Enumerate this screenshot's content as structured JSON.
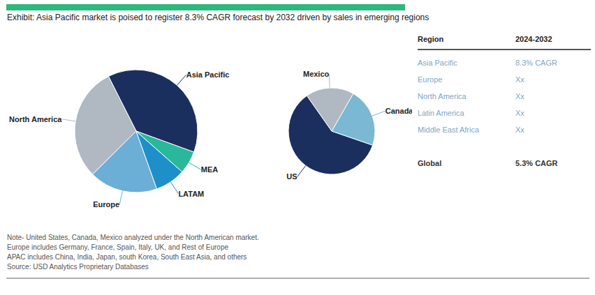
{
  "chart_data": [
    {
      "type": "pie",
      "title": "Exhibit: Asia Pacific market is poised to register 8.3% CAGR forecast by 2032 driven by sales in emerging regions",
      "categories": [
        "Asia Pacific",
        "North America",
        "Europe",
        "LATAM",
        "MEA"
      ],
      "values": [
        38,
        30,
        18,
        8,
        6
      ],
      "colors": [
        "#1b2f5e",
        "#b0b8c1",
        "#6baed6",
        "#1e8fc9",
        "#2ab89a"
      ],
      "annotations": [
        "Note- United States, Canada, Mexico analyzed under the North American market.",
        "Europe includes Germany, France, Spain, Italy, UK, and Rest of Europe",
        "APAC includes China, India, Japan, south Korea, South East Asia, and others",
        "Source: USD Analytics Proprietary Databases"
      ]
    },
    {
      "type": "pie",
      "categories": [
        "US",
        "Canada",
        "Mexico"
      ],
      "values": [
        60,
        22,
        18
      ],
      "colors": [
        "#1b2f5e",
        "#7ab8d4",
        "#b0b8c1"
      ]
    },
    {
      "type": "table",
      "header": [
        "Region",
        "2024-2032"
      ],
      "rows": [
        [
          "Asia Pacific",
          "8.3% CAGR"
        ],
        [
          "Europe",
          "Xx"
        ],
        [
          "North America",
          "Xx"
        ],
        [
          "Latin America",
          "Xx"
        ],
        [
          "Middle East Africa",
          "Xx"
        ],
        [
          "Global",
          "5.3% CAGR"
        ]
      ]
    }
  ]
}
